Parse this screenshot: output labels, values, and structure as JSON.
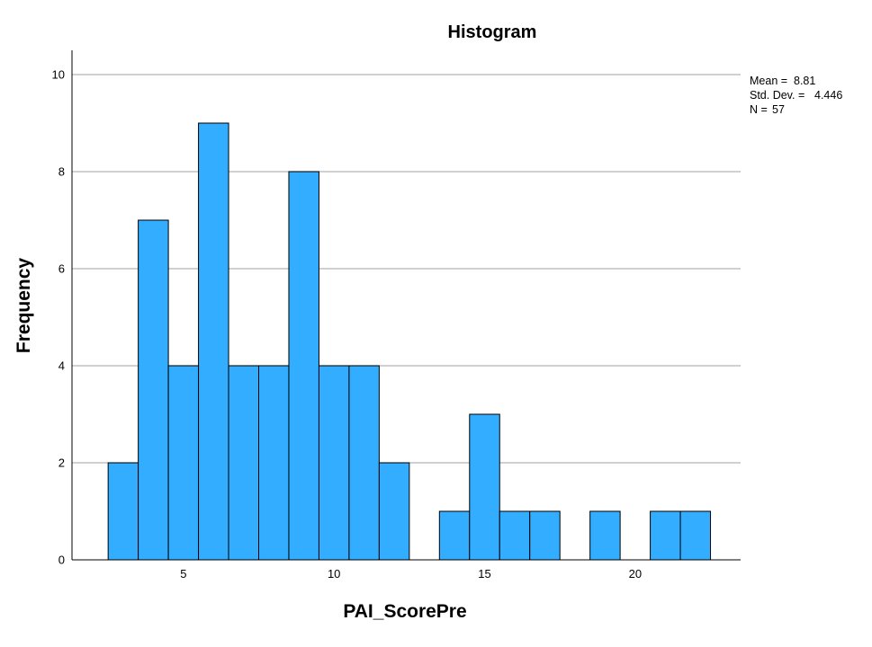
{
  "chart_data": {
    "type": "bar",
    "title": "Histogram",
    "xlabel": "PAI_ScorePre",
    "ylabel": "Frequency",
    "xlim": [
      1.3,
      23.5
    ],
    "ylim": [
      0,
      10.5
    ],
    "x_ticks": [
      5,
      10,
      15,
      20
    ],
    "y_ticks": [
      0,
      2,
      4,
      6,
      8,
      10
    ],
    "grid": "horizontal",
    "bin_width": 1,
    "bins": [
      {
        "x": 3,
        "count": 2
      },
      {
        "x": 4,
        "count": 7
      },
      {
        "x": 5,
        "count": 4
      },
      {
        "x": 6,
        "count": 9
      },
      {
        "x": 7,
        "count": 4
      },
      {
        "x": 8,
        "count": 4
      },
      {
        "x": 9,
        "count": 8
      },
      {
        "x": 10,
        "count": 4
      },
      {
        "x": 11,
        "count": 4
      },
      {
        "x": 12,
        "count": 2
      },
      {
        "x": 14,
        "count": 1
      },
      {
        "x": 15,
        "count": 3
      },
      {
        "x": 16,
        "count": 1
      },
      {
        "x": 17,
        "count": 1
      },
      {
        "x": 19,
        "count": 1
      },
      {
        "x": 21,
        "count": 1
      },
      {
        "x": 22,
        "count": 1
      }
    ],
    "bar_color": "#33adff",
    "stats": {
      "mean_label": "Mean =",
      "mean_value": "8.81",
      "sd_label": "Std. Dev. =",
      "sd_value": "4.446",
      "n_label": "N =",
      "n_value": "57"
    }
  }
}
